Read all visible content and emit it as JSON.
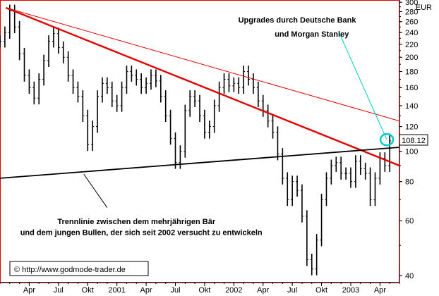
{
  "chart_data": {
    "type": "line",
    "subtype": "bar-ohlc",
    "currency": "EUR",
    "last_price": "108.12",
    "y_scale": "log",
    "ylim": [
      38,
      305
    ],
    "y_ticks": [
      300,
      280,
      260,
      240,
      220,
      200,
      180,
      160,
      140,
      120,
      100,
      80,
      60,
      40
    ],
    "x_ticks": [
      "Apr",
      "Jul",
      "Okt",
      "2001",
      "Apr",
      "Jul",
      "Okt",
      "2002",
      "Apr",
      "Jul",
      "Okt",
      "2003",
      "Apr"
    ],
    "x_tick_months": [
      3,
      6,
      9,
      12,
      15,
      18,
      21,
      24,
      27,
      30,
      33,
      36,
      39
    ],
    "xlim": [
      0,
      41
    ],
    "series": [
      {
        "color": "#000000",
        "x": [
          0.0,
          0.5,
          1.0,
          1.5,
          2.0,
          2.5,
          3.0,
          3.5,
          4.0,
          4.5,
          5.0,
          5.5,
          6.0,
          6.5,
          7.0,
          7.5,
          8.0,
          8.5,
          9.0,
          9.5,
          10.0,
          10.5,
          11.0,
          11.5,
          12.0,
          12.5,
          13.0,
          13.5,
          14.0,
          14.5,
          15.0,
          15.5,
          16.0,
          16.5,
          17.0,
          17.5,
          18.0,
          18.5,
          19.0,
          19.5,
          20.0,
          20.5,
          21.0,
          21.5,
          22.0,
          22.5,
          23.0,
          23.5,
          24.0,
          24.5,
          25.0,
          25.5,
          26.0,
          26.5,
          27.0,
          27.5,
          28.0,
          28.5,
          29.0,
          29.5,
          30.0,
          30.5,
          31.0,
          31.5,
          32.0,
          32.5,
          33.0,
          33.5,
          34.0,
          34.5,
          35.0,
          35.5,
          36.0,
          36.5,
          37.0,
          37.5,
          38.0,
          38.5,
          39.0,
          39.5,
          40.0
        ],
        "y": [
          225,
          240,
          282,
          250,
          205,
          175,
          160,
          148,
          170,
          195,
          225,
          238,
          215,
          200,
          175,
          160,
          150,
          130,
          105,
          120,
          150,
          165,
          160,
          145,
          140,
          160,
          180,
          175,
          170,
          160,
          165,
          175,
          168,
          150,
          130,
          110,
          92,
          100,
          135,
          150,
          145,
          130,
          115,
          120,
          140,
          160,
          170,
          162,
          165,
          160,
          180,
          170,
          160,
          145,
          135,
          125,
          115,
          98,
          82,
          70,
          80,
          75,
          62,
          45,
          42,
          52,
          70,
          82,
          90,
          92,
          85,
          85,
          80,
          93,
          88,
          85,
          70,
          82,
          95,
          90,
          108
        ]
      }
    ],
    "lines": [
      {
        "color": "#e00000",
        "x": [
          0.6,
          41.0
        ],
        "y": [
          288,
          90
        ]
      },
      {
        "color": "#e00000",
        "x": [
          0.6,
          41.0
        ],
        "y": [
          288,
          125
        ]
      },
      {
        "color": "#000000",
        "x": [
          0.0,
          41.0
        ],
        "y": [
          82,
          103
        ]
      },
      {
        "color": "#00cccc",
        "x": [
          34.8,
          39.7
        ],
        "y": [
          240,
          109
        ]
      }
    ],
    "highlight": {
      "x": 39.7,
      "y": 109,
      "color": "#00cccc"
    },
    "annotations": [
      {
        "text": "Upgrades durch Deutsche Bank",
        "x": 30.5,
        "y": 258
      },
      {
        "text": "und Morgan Stanley",
        "x": 32.0,
        "y": 233
      },
      {
        "text": "Trennlinie zwischen dem mehrjährigen Bär",
        "x": 14.0,
        "y": 58.5
      },
      {
        "text": "und dem jungen Bullen, der sich seit 2002 versucht zu entwickeln",
        "x": 14.5,
        "y": 54
      }
    ],
    "copyright": "© http://www.godmode-trader.de",
    "grid": false,
    "legend": "none"
  }
}
